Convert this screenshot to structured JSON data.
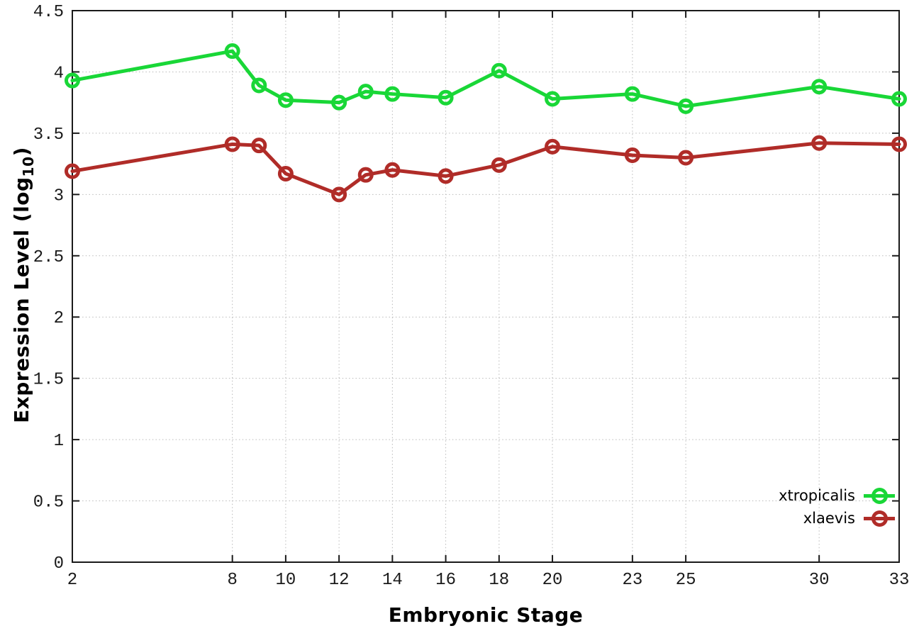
{
  "figure": {
    "background": "#ffffff"
  },
  "labels": {
    "xlabel": "Embryonic Stage",
    "ylabel_pre": "Expression Level (log",
    "ylabel_sub": "10",
    "ylabel_post": ")"
  },
  "chart_data": {
    "type": "line",
    "title": "",
    "xlabel": "Embryonic Stage",
    "ylabel": "Expression Level (log10)",
    "xlim": [
      2,
      33
    ],
    "ylim": [
      0,
      4.5
    ],
    "grid": true,
    "grid_style": "dotted",
    "legend_position": "bottom-right-inside",
    "axis_color": "#1a1a1a",
    "grid_color": "#b9b9b9",
    "tick_label_color": "#1a1a1a",
    "xticks": {
      "values": [
        2,
        8,
        10,
        12,
        14,
        16,
        18,
        20,
        23,
        25,
        30,
        33
      ],
      "labels": [
        "2",
        "8",
        "10",
        "12",
        "14",
        "16",
        "18",
        "20",
        "23",
        "25",
        "30",
        "33"
      ]
    },
    "yticks": {
      "values": [
        0,
        0.5,
        1,
        1.5,
        2,
        2.5,
        3,
        3.5,
        4,
        4.5
      ],
      "labels": [
        "0",
        "0.5",
        "1",
        "1.5",
        "2",
        "2.5",
        "3",
        "3.5",
        "4",
        "4.5"
      ]
    },
    "x": [
      2,
      8,
      9,
      10,
      12,
      13,
      14,
      16,
      18,
      20,
      23,
      25,
      30,
      33
    ],
    "series": [
      {
        "name": "xtropicalis",
        "color": "#19d737",
        "marker": "open-circle",
        "values": [
          3.93,
          4.17,
          3.89,
          3.77,
          3.75,
          3.84,
          3.82,
          3.79,
          4.01,
          3.78,
          3.82,
          3.72,
          3.88,
          3.78
        ]
      },
      {
        "name": "xlaevis",
        "color": "#b02c28",
        "marker": "open-circle",
        "values": [
          3.19,
          3.41,
          3.4,
          3.17,
          3.0,
          3.16,
          3.2,
          3.15,
          3.24,
          3.39,
          3.32,
          3.3,
          3.42,
          3.41
        ]
      }
    ]
  }
}
